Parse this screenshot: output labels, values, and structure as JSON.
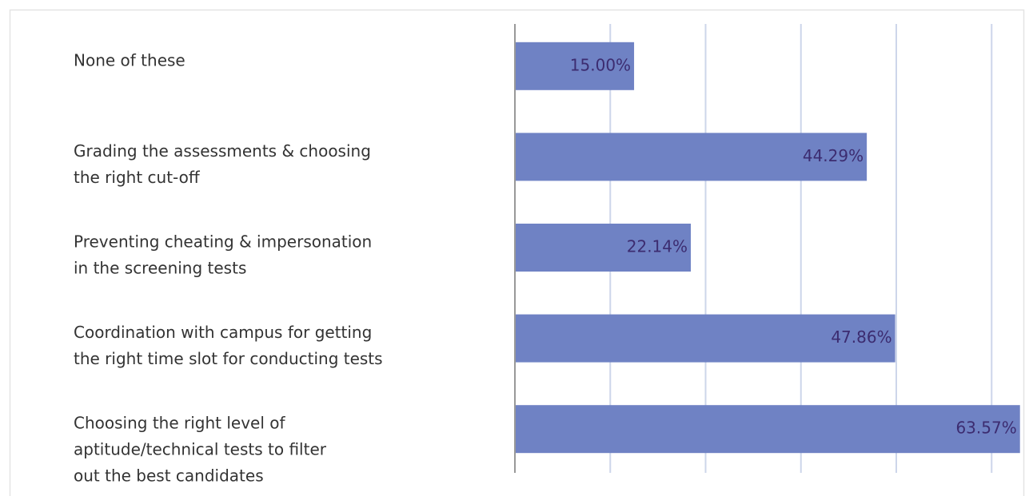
{
  "chart_data": {
    "type": "barh",
    "categories": [
      [
        "None of these"
      ],
      [
        "Grading the assessments & choosing",
        "the right cut-off"
      ],
      [
        "Preventing cheating & impersonation",
        "in the screening tests"
      ],
      [
        "Coordination with campus for getting",
        "the right time slot for conducting tests"
      ],
      [
        "Choosing the right level of",
        "aptitude/technical tests to filter",
        "out the best candidates"
      ]
    ],
    "values": [
      15.0,
      44.29,
      22.14,
      47.86,
      63.57
    ],
    "value_labels": [
      "15.00%",
      "44.29%",
      "22.14%",
      "47.86%",
      "63.57%"
    ],
    "color": "#6f82c4",
    "xlim": [
      0,
      64
    ],
    "xticks": [
      0,
      12,
      24,
      36,
      48,
      60
    ],
    "grid": true
  }
}
